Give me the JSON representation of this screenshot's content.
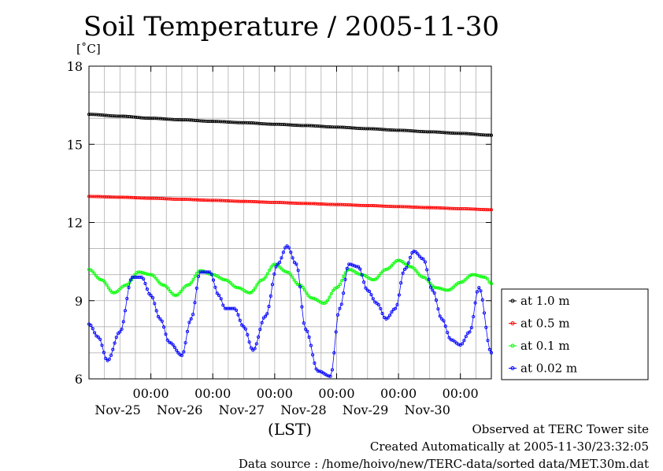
{
  "chart_data": {
    "type": "line",
    "title": "Soil Temperature / 2005-11-30",
    "unit_label": "[˚C]",
    "xlabel": "(LST)",
    "ylim": [
      6,
      18
    ],
    "yticks": [
      6,
      9,
      12,
      15,
      18
    ],
    "x_unit": "day",
    "xlim": [
      0,
      6.5
    ],
    "x_ticks": [
      {
        "x": 1,
        "time": "00:00",
        "date": "Nov-25"
      },
      {
        "x": 2,
        "time": "00:00",
        "date": "Nov-26"
      },
      {
        "x": 3,
        "time": "00:00",
        "date": "Nov-27"
      },
      {
        "x": 4,
        "time": "00:00",
        "date": "Nov-28"
      },
      {
        "x": 5,
        "time": "00:00",
        "date": "Nov-29"
      },
      {
        "x": 6,
        "time": "00:00",
        "date": "Nov-30"
      }
    ],
    "grid": true,
    "legend_position": "right",
    "series": [
      {
        "name": "at 1.0 m",
        "color": "#000000",
        "x": [
          0,
          0.5,
          1,
          1.5,
          2,
          2.5,
          3,
          3.5,
          4,
          4.5,
          5,
          5.5,
          6,
          6.5
        ],
        "y": [
          16.15,
          16.08,
          16.0,
          15.94,
          15.88,
          15.83,
          15.77,
          15.72,
          15.66,
          15.6,
          15.54,
          15.48,
          15.42,
          15.35
        ]
      },
      {
        "name": "at 0.5 m",
        "color": "#ff0000",
        "x": [
          0,
          0.5,
          1,
          1.5,
          2,
          2.5,
          3,
          3.5,
          4,
          4.5,
          5,
          5.5,
          6,
          6.5
        ],
        "y": [
          13.0,
          12.97,
          12.93,
          12.89,
          12.85,
          12.81,
          12.77,
          12.73,
          12.69,
          12.65,
          12.61,
          12.57,
          12.53,
          12.49
        ]
      },
      {
        "name": "at 0.1 m",
        "color": "#00ff00",
        "x": [
          0,
          0.2,
          0.4,
          0.6,
          0.8,
          1.0,
          1.2,
          1.4,
          1.6,
          1.8,
          2.0,
          2.2,
          2.4,
          2.6,
          2.8,
          3.0,
          3.2,
          3.4,
          3.6,
          3.8,
          4.0,
          4.2,
          4.4,
          4.6,
          4.8,
          5.0,
          5.2,
          5.4,
          5.6,
          5.8,
          6.0,
          6.2,
          6.4,
          6.5
        ],
        "y": [
          10.2,
          9.8,
          9.3,
          9.6,
          10.1,
          10.0,
          9.6,
          9.2,
          9.6,
          10.15,
          10.0,
          9.8,
          9.5,
          9.3,
          9.8,
          10.4,
          10.1,
          9.6,
          9.1,
          8.9,
          9.5,
          10.2,
          10.0,
          9.8,
          10.2,
          10.55,
          10.3,
          9.9,
          9.5,
          9.4,
          9.7,
          10.0,
          9.9,
          9.65
        ]
      },
      {
        "name": "at 0.02 m",
        "color": "#0000ff",
        "x": [
          0,
          0.15,
          0.3,
          0.5,
          0.7,
          0.85,
          1.0,
          1.15,
          1.3,
          1.5,
          1.65,
          1.8,
          1.95,
          2.1,
          2.2,
          2.35,
          2.5,
          2.65,
          2.85,
          3.05,
          3.2,
          3.35,
          3.5,
          3.7,
          3.9,
          4.05,
          4.2,
          4.35,
          4.5,
          4.65,
          4.8,
          4.95,
          5.1,
          5.25,
          5.4,
          5.55,
          5.7,
          5.85,
          6.0,
          6.15,
          6.3,
          6.5
        ],
        "y": [
          8.1,
          7.6,
          6.7,
          7.8,
          9.9,
          9.9,
          9.2,
          8.3,
          7.4,
          6.9,
          8.3,
          10.1,
          10.1,
          9.2,
          8.7,
          8.7,
          8.0,
          7.1,
          8.4,
          10.4,
          11.1,
          10.4,
          7.9,
          6.3,
          6.1,
          8.7,
          10.4,
          10.3,
          9.4,
          8.9,
          8.3,
          8.7,
          10.2,
          10.9,
          10.6,
          9.4,
          8.3,
          7.5,
          7.3,
          7.8,
          9.5,
          7.0
        ]
      }
    ]
  },
  "footer": {
    "line1": "Observed at TERC Tower site",
    "line2": "Created Automatically at 2005-11-30/23:32:05",
    "line3": "Data source : /home/hoivo/new/TERC-data/sorted  data/MET.30m.dat"
  }
}
